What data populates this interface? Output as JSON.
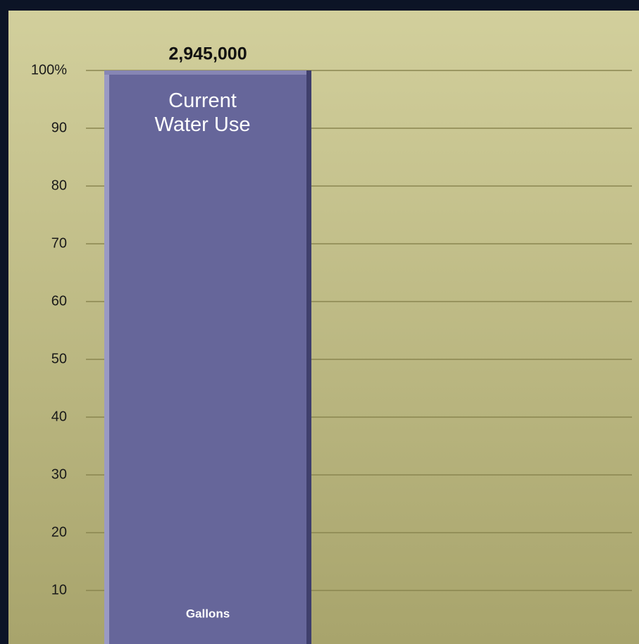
{
  "chart_data": {
    "type": "bar",
    "categories": [
      "Current Water Use"
    ],
    "values": [
      100
    ],
    "color": "#66669a",
    "bar_label": "2,945,000",
    "unit_label": "Gallons",
    "ylim": [
      0,
      100
    ],
    "yticks": [
      10,
      20,
      30,
      40,
      50,
      60,
      70,
      80,
      90,
      {
        "value": 100,
        "label": "100%"
      }
    ],
    "grid": true
  }
}
